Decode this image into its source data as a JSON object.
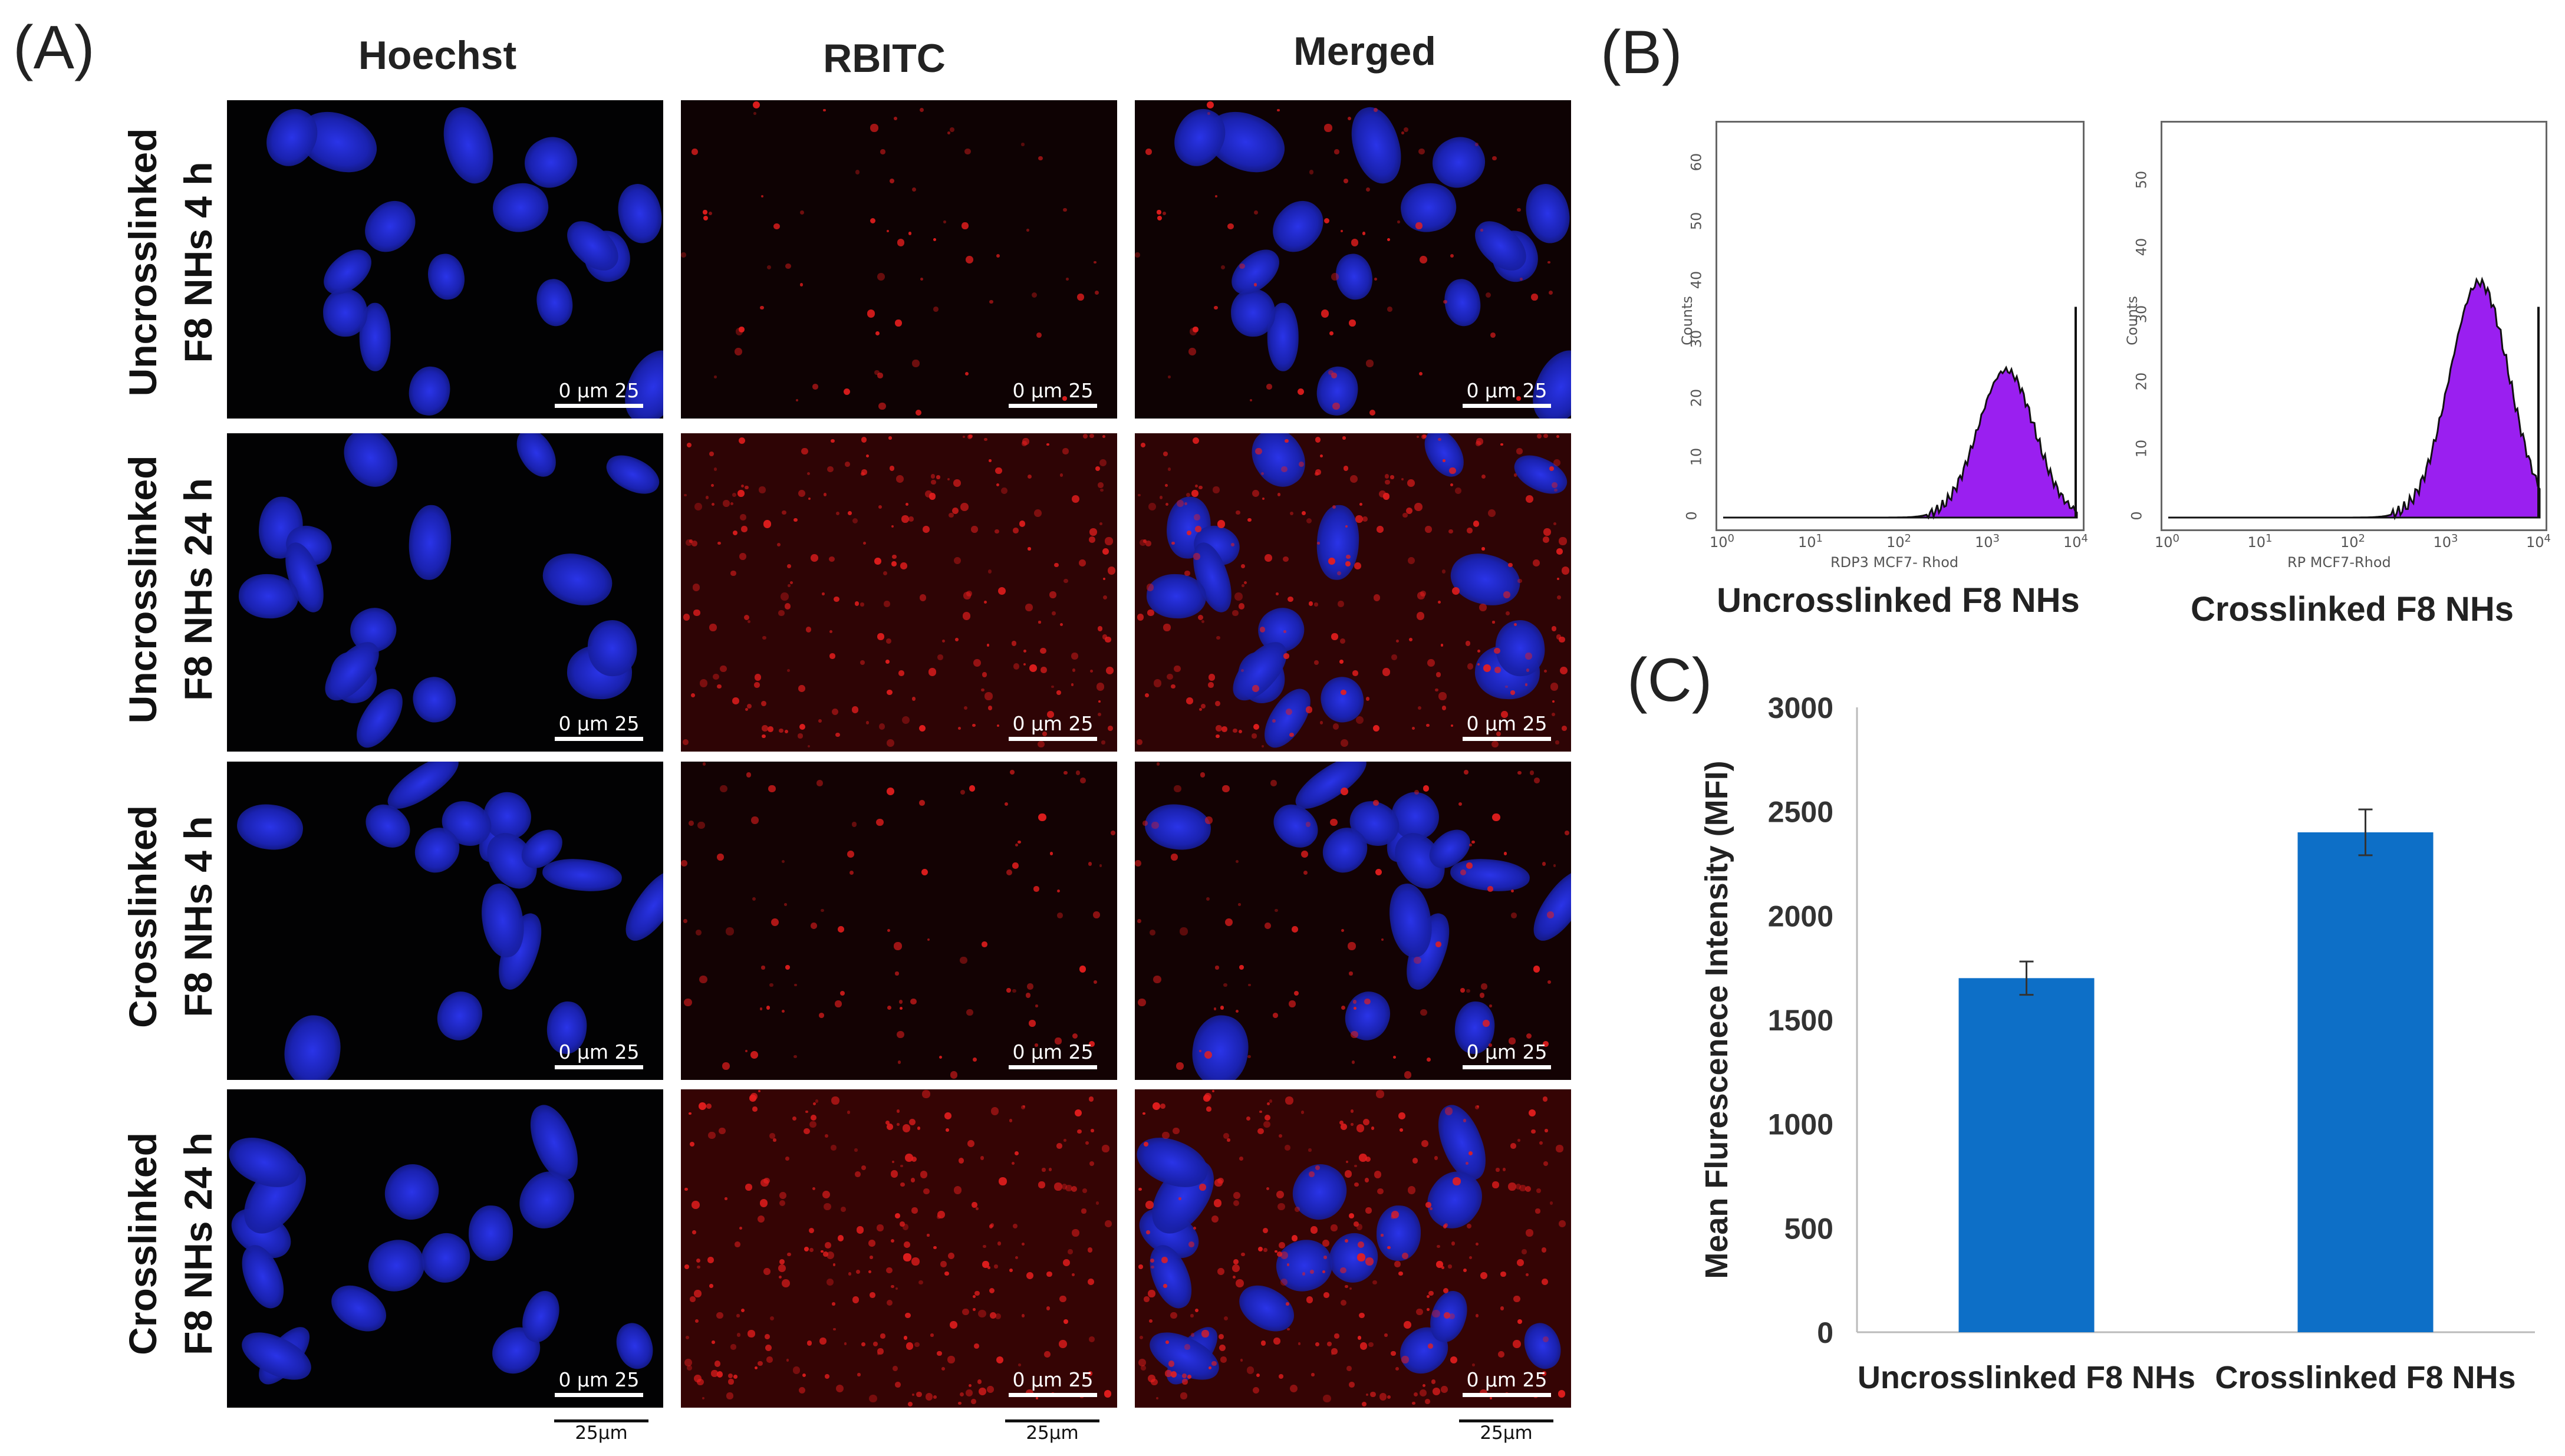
{
  "panels": {
    "a": "(A)",
    "b": "(B)",
    "c": "(C)"
  },
  "columns": [
    "Hoechst",
    "RBITC",
    "Merged"
  ],
  "rows": [
    {
      "line1": "Uncrosslinked",
      "line2": "F8 NHs 4 h"
    },
    {
      "line1": "Uncrosslinked",
      "line2": "F8 NHs 24 h"
    },
    {
      "line1": "Crosslinked",
      "line2": "F8 NHs 4 h"
    },
    {
      "line1": "Crosslinked",
      "line2": "F8 NHs 24 h"
    }
  ],
  "image_scale_label": "0 µm 25",
  "bottom_scale_label": "25µm",
  "histograms": [
    {
      "label": "Uncrosslinked F8 NHs",
      "ylabel": "Counts",
      "xlabel": "RDP3 MCF7- Rhod",
      "yticks": [
        "0",
        "10",
        "20",
        "30",
        "40",
        "50",
        "60"
      ],
      "ymax": 65,
      "xticks": [
        "10",
        "10",
        "10",
        "10",
        "10"
      ],
      "xexp": [
        "0",
        "1",
        "2",
        "3",
        "4"
      ],
      "fill": "#9a1ff0",
      "peak_count": 25,
      "peak_log": 3.2
    },
    {
      "label": "Crosslinked F8 NHs",
      "ylabel": "Counts",
      "xlabel": "RP MCF7-Rhod",
      "yticks": [
        "0",
        "10",
        "20",
        "30",
        "40",
        "50"
      ],
      "ymax": 57,
      "xticks": [
        "10",
        "10",
        "10",
        "10",
        "10"
      ],
      "xexp": [
        "0",
        "1",
        "2",
        "3",
        "4"
      ],
      "fill": "#9a1ff0",
      "peak_count": 35,
      "peak_log": 3.35
    }
  ],
  "chart_data": {
    "type": "bar",
    "categories": [
      "Uncrosslinked F8 NHs",
      "Crosslinked F8 NHs"
    ],
    "values": [
      1700,
      2400
    ],
    "errors": [
      80,
      110
    ],
    "ylabel": "Mean Flurescenece Intensity (MFI)",
    "ylim": [
      0,
      3000
    ],
    "yticks": [
      0,
      500,
      1000,
      1500,
      2000,
      2500,
      3000
    ],
    "bar_color": "#0d6fc7",
    "grid": false
  }
}
